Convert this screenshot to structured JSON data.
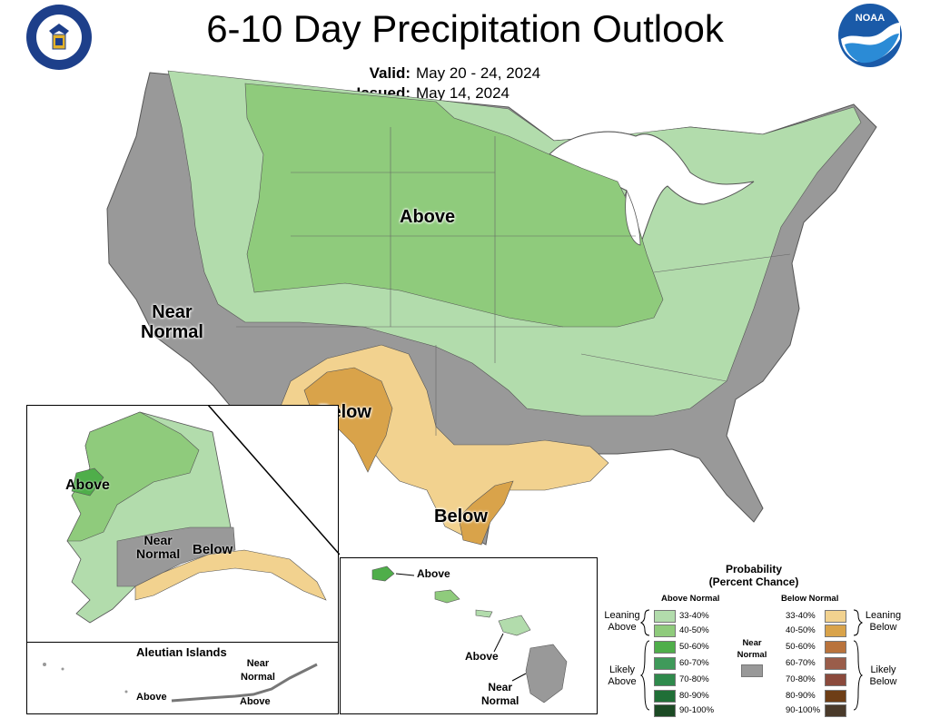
{
  "title": "6-10 Day Precipitation Outlook",
  "valid": {
    "label": "Valid:",
    "value": "May 20 - 24, 2024"
  },
  "issued": {
    "label": "Issued:",
    "value": "May 14, 2024"
  },
  "logos": {
    "left": "department-of-commerce-seal-icon",
    "right_text": "NOAA"
  },
  "map_labels": {
    "conus_above": "Above",
    "conus_near_normal": [
      "Near",
      "Normal"
    ],
    "conus_below_sw": "Below",
    "conus_below_tx": "Below"
  },
  "alaska": {
    "above": "Above",
    "near_normal": [
      "Near",
      "Normal"
    ],
    "below": "Below"
  },
  "aleutians": {
    "title": "Aleutian Islands",
    "near_normal": [
      "Near",
      "Normal"
    ],
    "above_left": "Above",
    "above_right": "Above"
  },
  "hawaii": {
    "above_top": "Above",
    "above_mid": "Above",
    "near_normal": [
      "Near",
      "Normal"
    ]
  },
  "legend": {
    "title": [
      "Probability",
      "(Percent Chance)"
    ],
    "above_header": "Above Normal",
    "below_header": "Below Normal",
    "near_label": [
      "Near",
      "Normal"
    ],
    "leaning_above": [
      "Leaning",
      "Above"
    ],
    "likely_above": [
      "Likely",
      "Above"
    ],
    "leaning_below": [
      "Leaning",
      "Below"
    ],
    "likely_below": [
      "Likely",
      "Below"
    ],
    "above_bins": [
      {
        "label": "33-40%",
        "color": "#b2dcac"
      },
      {
        "label": "40-50%",
        "color": "#8fcb7c"
      },
      {
        "label": "50-60%",
        "color": "#4fae4a"
      },
      {
        "label": "60-70%",
        "color": "#3f9a5a"
      },
      {
        "label": "70-80%",
        "color": "#2f8a4c"
      },
      {
        "label": "80-90%",
        "color": "#206f37"
      },
      {
        "label": "90-100%",
        "color": "#1b4a24"
      }
    ],
    "below_bins": [
      {
        "label": "33-40%",
        "color": "#f2d28f"
      },
      {
        "label": "40-50%",
        "color": "#d9a34a"
      },
      {
        "label": "50-60%",
        "color": "#b9733c"
      },
      {
        "label": "60-70%",
        "color": "#9a5d4a"
      },
      {
        "label": "70-80%",
        "color": "#8b4a3c"
      },
      {
        "label": "80-90%",
        "color": "#6e3e16"
      },
      {
        "label": "90-100%",
        "color": "#4a3a2a"
      }
    ],
    "near_color": "#999999"
  }
}
